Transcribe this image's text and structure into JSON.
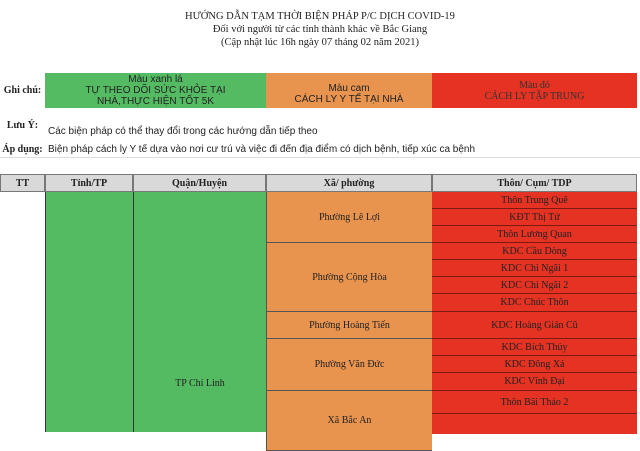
{
  "header": {
    "title": "HƯỚNG DẪN TẠM THỜI BIỆN PHÁP P/C DỊCH COVID-19",
    "subtitle": "Đối với người từ các tỉnh thành khác về Bắc Giang",
    "updated": "(Cập nhật lúc 16h ngày 07 tháng 02 năm 2021)"
  },
  "legend": {
    "label": "Ghi chú:",
    "green": {
      "name": "Màu xanh lá",
      "text": "TỰ THEO DÕI SỨC KHỎE TẠI NHÀ,THỰC HIỆN TỐT 5K",
      "color": "#54bb63"
    },
    "orange": {
      "name": "Màu cam",
      "text": "CÁCH LY Y TẾ TẠI NHÀ",
      "color": "#e8944f"
    },
    "red": {
      "name": "Màu đỏ",
      "text": "CÁCH LY TẬP TRUNG",
      "color": "#e53222"
    }
  },
  "notes": {
    "luu_y_label": "Lưu Ý:",
    "luu_y_text": "Các biện pháp có thể thay đổi trong các hướng dẫn tiếp theo",
    "ap_dung_label": "Áp dụng:",
    "ap_dung_text": "Biện pháp cách ly Y tế dựa vào nơi cư trú và việc đi đến địa điểm có dịch bệnh, tiếp xúc ca bệnh"
  },
  "table": {
    "columns": [
      "TT",
      "Tỉnh/TP",
      "Quận/Huyện",
      "Xã/ phường",
      "Thôn/ Cụm/ TDP"
    ],
    "district": "TP Chí Linh",
    "wards": [
      "Phường Lê Lợi",
      "Phường Cộng Hòa",
      "Phường Hoàng Tiến",
      "Phường Văn Đức",
      "Xã Bắc An"
    ],
    "hamlets": [
      "Thôn Trung Quê",
      "KĐT Thị Tứ",
      "Thôn Lương Quan",
      "KDC Cầu Dòng",
      "KDC Chi Ngãi 1",
      "KDC Chi Ngãi 2",
      "KDC Chúc Thôn",
      "KDC Hoàng Gián Cũ",
      "KDC Bích Thủy",
      "KDC Đông Xá",
      "KDC Vĩnh Đại",
      "Thôn Bãi Thảo 2"
    ]
  }
}
